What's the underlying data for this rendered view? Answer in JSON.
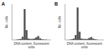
{
  "chart_data": [
    {
      "type": "histogram",
      "title": "A",
      "x_label": "DNA content, fluorescent units",
      "y_label": "No. cells",
      "bins": [
        0,
        5,
        10,
        15,
        20,
        25,
        30,
        35,
        40,
        45,
        50,
        55,
        60,
        65,
        70,
        75,
        80,
        85,
        90,
        95,
        100
      ],
      "values": [
        0,
        0,
        1,
        2,
        3,
        10,
        95,
        30,
        4,
        3,
        3,
        4,
        8,
        12,
        5,
        2,
        1,
        1,
        0,
        0
      ],
      "color": "#555555",
      "xlim": [
        0,
        100
      ],
      "ylim": [
        0,
        110
      ],
      "tick_labels": false
    },
    {
      "type": "histogram",
      "title": "B",
      "x_label": "DNA content, fluorescent units",
      "y_label": "No. cells",
      "bins": [
        0,
        5,
        10,
        15,
        20,
        25,
        30,
        35,
        40,
        45,
        50,
        55,
        60,
        65,
        70,
        75,
        80,
        85,
        90,
        95,
        100
      ],
      "values": [
        0,
        0,
        1,
        2,
        4,
        15,
        100,
        25,
        4,
        3,
        3,
        3,
        6,
        9,
        4,
        2,
        1,
        0,
        0,
        0
      ],
      "color": "#555555",
      "xlim": [
        0,
        100
      ],
      "ylim": [
        0,
        110
      ],
      "tick_labels": false
    }
  ]
}
